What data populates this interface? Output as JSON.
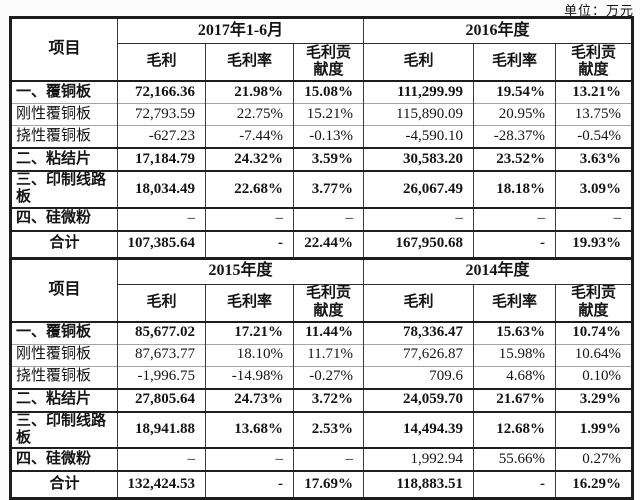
{
  "unit_label": "单位：万元",
  "colors": {
    "border_dark": "#1c1c1c",
    "border_light": "#a3a3a3",
    "text": "#141414",
    "background": "#fcfcfc"
  },
  "header": {
    "item_col": "项目",
    "gross_profit": "毛利",
    "gross_margin": "毛利率",
    "contribution": "毛利贡\n献度"
  },
  "tables": [
    {
      "periods": [
        "2017年1-6月",
        "2016年度"
      ],
      "rows": [
        {
          "label": "一、覆铜板",
          "style": "section",
          "tall": false,
          "label_bold": true,
          "values_bold": true,
          "values": [
            "72,166.36",
            "21.98%",
            "15.08%",
            "111,299.99",
            "19.54%",
            "13.21%"
          ]
        },
        {
          "label": "刚性覆铜板",
          "style": "sub",
          "tall": false,
          "label_bold": false,
          "values_bold": false,
          "values": [
            "72,793.59",
            "22.75%",
            "15.21%",
            "115,890.09",
            "20.95%",
            "13.75%"
          ]
        },
        {
          "label": "挠性覆铜板",
          "style": "sub",
          "tall": false,
          "label_bold": false,
          "values_bold": false,
          "values": [
            "-627.23",
            "-7.44%",
            "-0.13%",
            "-4,590.10",
            "-28.37%",
            "-0.54%"
          ]
        },
        {
          "label": "二、粘结片",
          "style": "section",
          "tall": false,
          "label_bold": true,
          "values_bold": true,
          "values": [
            "17,184.79",
            "24.32%",
            "3.59%",
            "30,583.20",
            "23.52%",
            "3.63%"
          ]
        },
        {
          "label": "三、印制线路板",
          "style": "section",
          "tall": true,
          "label_bold": true,
          "values_bold": true,
          "values": [
            "18,034.49",
            "22.68%",
            "3.77%",
            "26,067.49",
            "18.18%",
            "3.09%"
          ]
        },
        {
          "label": "四、硅微粉",
          "style": "section",
          "tall": false,
          "label_bold": true,
          "values_bold": false,
          "values": [
            "–",
            "–",
            "–",
            "–",
            "–",
            "–"
          ]
        },
        {
          "label": "合计",
          "style": "total",
          "tall": false,
          "label_bold": true,
          "values_bold": true,
          "values": [
            "107,385.64",
            "-",
            "22.44%",
            "167,950.68",
            "-",
            "19.93%"
          ]
        }
      ]
    },
    {
      "periods": [
        "2015年度",
        "2014年度"
      ],
      "rows": [
        {
          "label": "一、覆铜板",
          "style": "section",
          "tall": false,
          "label_bold": true,
          "values_bold": true,
          "values": [
            "85,677.02",
            "17.21%",
            "11.44%",
            "78,336.47",
            "15.63%",
            "10.74%"
          ]
        },
        {
          "label": "刚性覆铜板",
          "style": "sub",
          "tall": false,
          "label_bold": false,
          "values_bold": false,
          "values": [
            "87,673.77",
            "18.10%",
            "11.71%",
            "77,626.87",
            "15.98%",
            "10.64%"
          ]
        },
        {
          "label": "挠性覆铜板",
          "style": "sub",
          "tall": false,
          "label_bold": false,
          "values_bold": false,
          "values": [
            "-1,996.75",
            "-14.98%",
            "-0.27%",
            "709.6",
            "4.68%",
            "0.10%"
          ]
        },
        {
          "label": "二、粘结片",
          "style": "section",
          "tall": false,
          "label_bold": true,
          "values_bold": true,
          "values": [
            "27,805.64",
            "24.73%",
            "3.72%",
            "24,059.70",
            "21.67%",
            "3.29%"
          ]
        },
        {
          "label": "三、印制线路板",
          "style": "section",
          "tall": true,
          "label_bold": true,
          "values_bold": true,
          "values": [
            "18,941.88",
            "13.68%",
            "2.53%",
            "14,494.39",
            "12.68%",
            "1.99%"
          ]
        },
        {
          "label": "四、硅微粉",
          "style": "section",
          "tall": false,
          "label_bold": true,
          "values_bold": false,
          "values": [
            "–",
            "–",
            "–",
            "1,992.94",
            "55.66%",
            "0.27%"
          ]
        },
        {
          "label": "合计",
          "style": "total",
          "tall": false,
          "label_bold": true,
          "values_bold": true,
          "values": [
            "132,424.53",
            "-",
            "17.69%",
            "118,883.51",
            "-",
            "16.29%"
          ]
        }
      ]
    }
  ]
}
